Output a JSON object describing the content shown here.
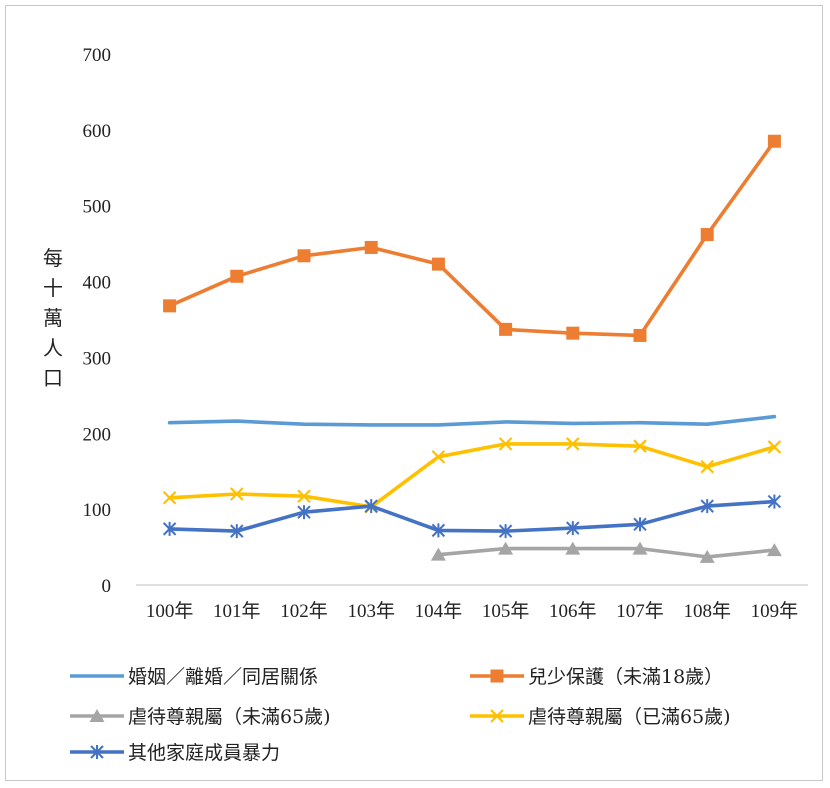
{
  "chart_data": {
    "type": "line",
    "ylabel": "每十萬人口",
    "ylim": [
      0,
      700
    ],
    "yticks": [
      0,
      100,
      200,
      300,
      400,
      500,
      600,
      700
    ],
    "categories": [
      "100年",
      "101年",
      "102年",
      "103年",
      "104年",
      "105年",
      "106年",
      "107年",
      "108年",
      "109年"
    ],
    "grid": false,
    "legend_position": "bottom",
    "series": [
      {
        "name": "婚姻／離婚／同居關係",
        "color": "#5b9bd5",
        "marker": "none",
        "values": [
          214,
          216,
          212,
          211,
          211,
          215,
          213,
          214,
          212,
          222
        ]
      },
      {
        "name": "兒少保護（未滿18歲）",
        "color": "#ed7d31",
        "marker": "square",
        "values": [
          368,
          407,
          434,
          445,
          423,
          337,
          332,
          329,
          462,
          585
        ]
      },
      {
        "name": "虐待尊親屬（未滿65歲)",
        "color": "#a5a5a5",
        "marker": "triangle",
        "values": [
          null,
          null,
          null,
          null,
          40,
          48,
          48,
          48,
          37,
          46
        ]
      },
      {
        "name": "虐待尊親屬（已滿65歲)",
        "color": "#ffc000",
        "marker": "x",
        "values": [
          115,
          120,
          117,
          103,
          169,
          186,
          186,
          183,
          156,
          182
        ]
      },
      {
        "name": "其他家庭成員暴力",
        "color": "#4472c4",
        "marker": "star",
        "values": [
          74,
          71,
          96,
          104,
          72,
          71,
          75,
          80,
          104,
          110
        ]
      }
    ]
  }
}
